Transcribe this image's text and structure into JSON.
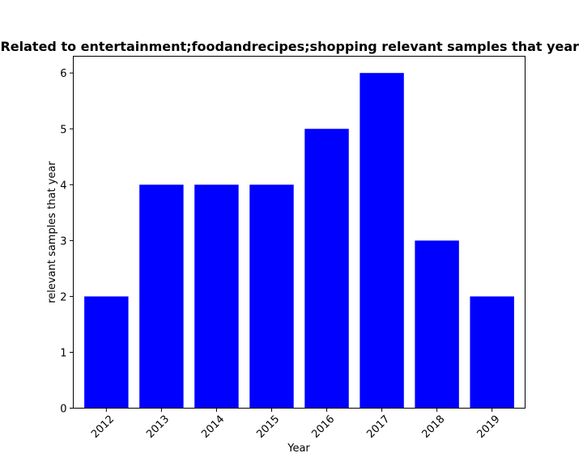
{
  "chart_data": {
    "type": "bar",
    "title": "Related to entertainment;foodandrecipes;shopping relevant samples that year in",
    "xlabel": "Year",
    "ylabel": "relevant samples that year",
    "categories": [
      "2012",
      "2013",
      "2014",
      "2015",
      "2016",
      "2017",
      "2018",
      "2019"
    ],
    "values": [
      2,
      4,
      4,
      4,
      5,
      6,
      3,
      2
    ],
    "ylim": [
      0,
      6.3
    ],
    "yticks": [
      0,
      1,
      2,
      3,
      4,
      5,
      6
    ],
    "bar_color": "#0000ff",
    "grid": false
  }
}
